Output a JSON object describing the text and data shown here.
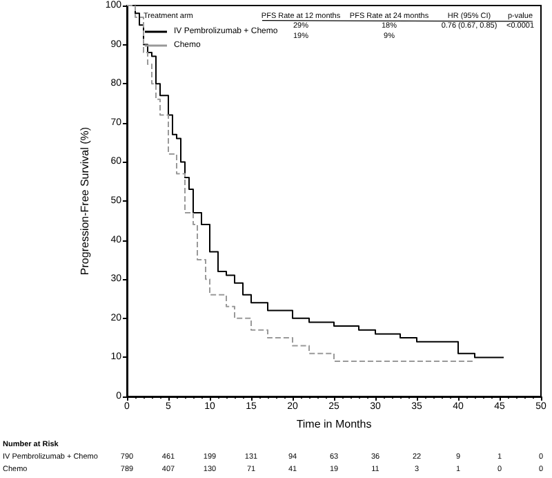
{
  "chart_data": {
    "type": "step",
    "xlabel": "Time in Months",
    "ylabel": "Progression-Free Survival (%)",
    "legend_title": "Treatment arm",
    "legend": "top left",
    "grid": false,
    "marker": "none",
    "xlim": [
      0,
      50
    ],
    "xticks": [
      0,
      5,
      10,
      15,
      20,
      25,
      30,
      35,
      40,
      45,
      50
    ],
    "ylim": [
      0,
      100
    ],
    "yticks": [
      0,
      10,
      20,
      30,
      40,
      50,
      60,
      70,
      80,
      90,
      100
    ],
    "series": [
      {
        "name": "IV Pembrolizumab + Chemo",
        "color": "#000000",
        "line_style": "solid",
        "x": [
          0,
          1,
          1.5,
          2,
          2.5,
          3,
          3.5,
          4,
          5,
          5.5,
          6,
          6.5,
          7,
          7.5,
          8,
          9,
          10,
          11,
          12,
          13,
          14,
          15,
          17,
          20,
          22,
          25,
          28,
          30,
          33,
          35,
          38,
          40,
          42,
          45.5
        ],
        "values": [
          100,
          98,
          95,
          90,
          88,
          87,
          80,
          77,
          72,
          67,
          66,
          60,
          56,
          53,
          47,
          44,
          37,
          32,
          31,
          29,
          26,
          24,
          22,
          20,
          19,
          18,
          17,
          16,
          15,
          14,
          14,
          11,
          10,
          10
        ]
      },
      {
        "name": "Chemo",
        "color": "#999999",
        "line_style": "dashed",
        "x": [
          0,
          1,
          2,
          2.5,
          3,
          3.5,
          4,
          5,
          6,
          7,
          8,
          8.5,
          9.5,
          10,
          12,
          13,
          15,
          17,
          20,
          22,
          25,
          30,
          35,
          42
        ],
        "values": [
          100,
          97,
          88,
          85,
          80,
          76,
          72,
          62,
          57,
          47,
          44,
          35,
          30,
          26,
          23,
          20,
          17,
          15,
          13,
          11,
          9,
          9,
          9,
          9
        ]
      }
    ],
    "annotations": [
      "PFS Rate at 12 months",
      "PFS Rate at 24 months",
      "HR (95% CI)",
      "p-value",
      "29%",
      "18%",
      "0.76 (0.67, 0.85)",
      "<0.0001",
      "19%",
      "9%",
      "Number at Risk",
      "IV Pembrolizumab + Chemo",
      "790",
      "461",
      "199",
      "131",
      "94",
      "63",
      "36",
      "22",
      "9",
      "1",
      "0",
      "Chemo",
      "789",
      "407",
      "130",
      "71",
      "41",
      "19",
      "11",
      "3",
      "1",
      "0",
      "0"
    ]
  }
}
